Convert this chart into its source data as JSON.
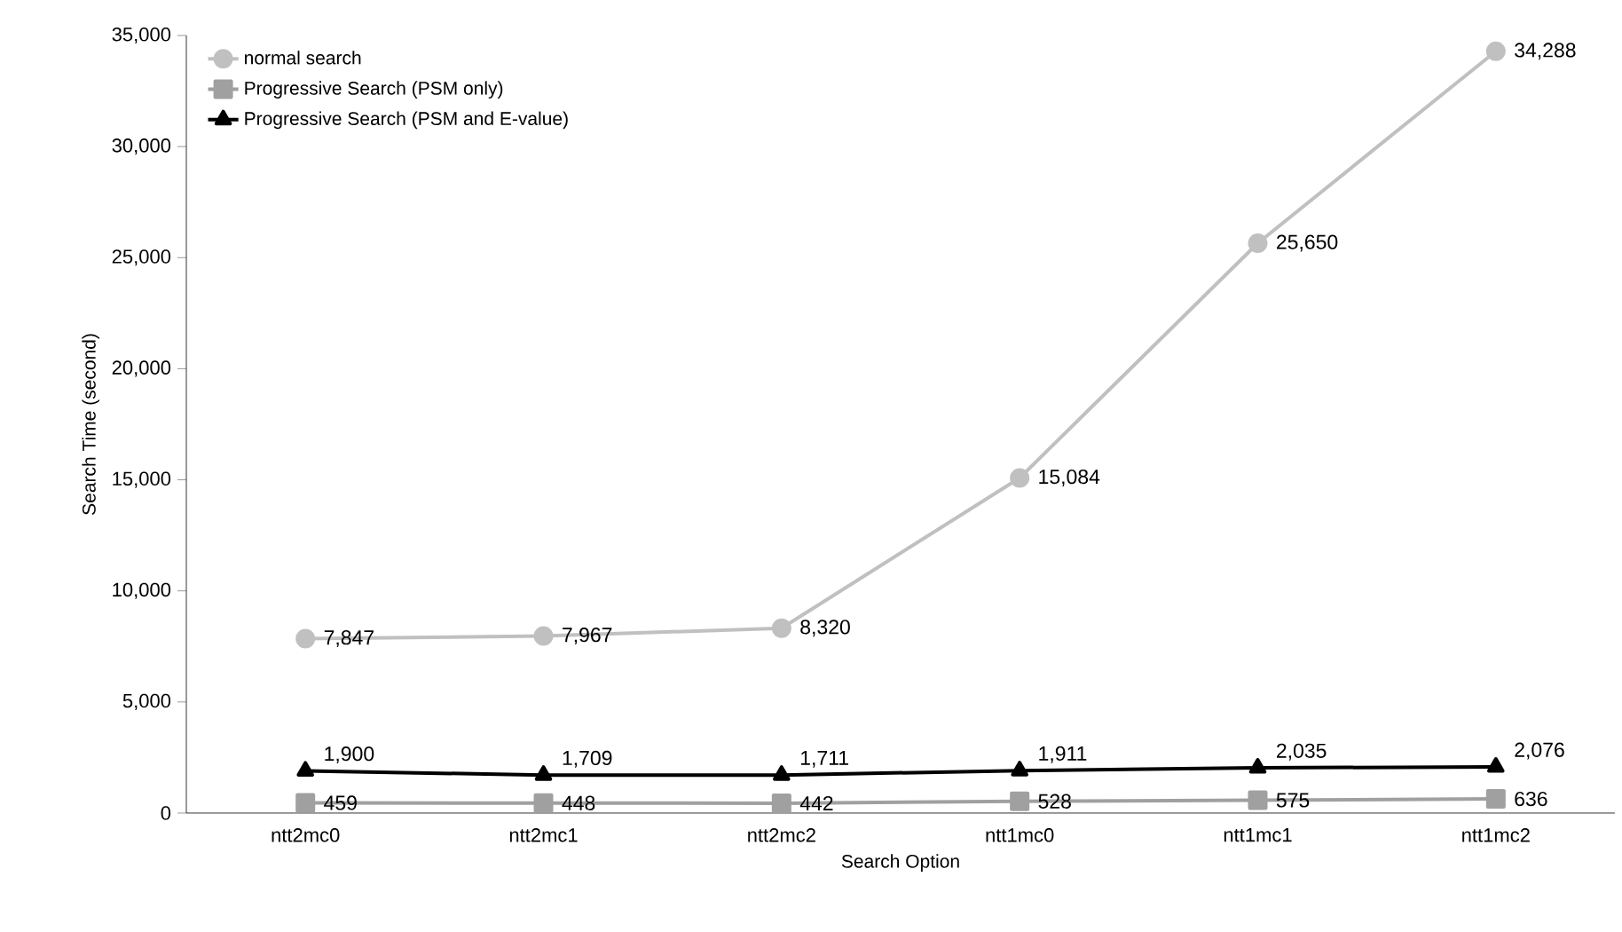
{
  "chart_data": {
    "type": "line",
    "xlabel": "Search Option",
    "ylabel": "Search Time (second)",
    "categories": [
      "ntt2mc0",
      "ntt2mc1",
      "ntt2mc2",
      "ntt1mc0",
      "ntt1mc1",
      "ntt1mc2"
    ],
    "series": [
      {
        "name": "normal search",
        "color": "#c0c0c0",
        "marker": "circle",
        "values": [
          7847,
          7967,
          8320,
          15084,
          25650,
          34288
        ],
        "value_labels": [
          "7,847",
          "7,967",
          "8,320",
          "15,084",
          "25,650",
          "34,288"
        ]
      },
      {
        "name": "Progressive Search (PSM only)",
        "color": "#a0a0a0",
        "marker": "square",
        "values": [
          459,
          448,
          442,
          528,
          575,
          636
        ],
        "value_labels": [
          "459",
          "448",
          "442",
          "528",
          "575",
          "636"
        ]
      },
      {
        "name": "Progressive Search (PSM and E-value)",
        "color": "#000000",
        "marker": "triangle",
        "values": [
          1900,
          1709,
          1711,
          1911,
          2035,
          2076
        ],
        "value_labels": [
          "1,900",
          "1,709",
          "1,711",
          "1,911",
          "2,035",
          "2,076"
        ]
      }
    ],
    "ylim": [
      0,
      35000
    ],
    "yticks": [
      {
        "value": 0,
        "label": "0"
      },
      {
        "value": 5000,
        "label": "5,000"
      },
      {
        "value": 10000,
        "label": "10,000"
      },
      {
        "value": 15000,
        "label": "15,000"
      },
      {
        "value": 20000,
        "label": "20,000"
      },
      {
        "value": 25000,
        "label": "25,000"
      },
      {
        "value": 30000,
        "label": "30,000"
      },
      {
        "value": 35000,
        "label": "35,000"
      }
    ],
    "grid": false,
    "legend": "top left",
    "line_style": "solid"
  }
}
